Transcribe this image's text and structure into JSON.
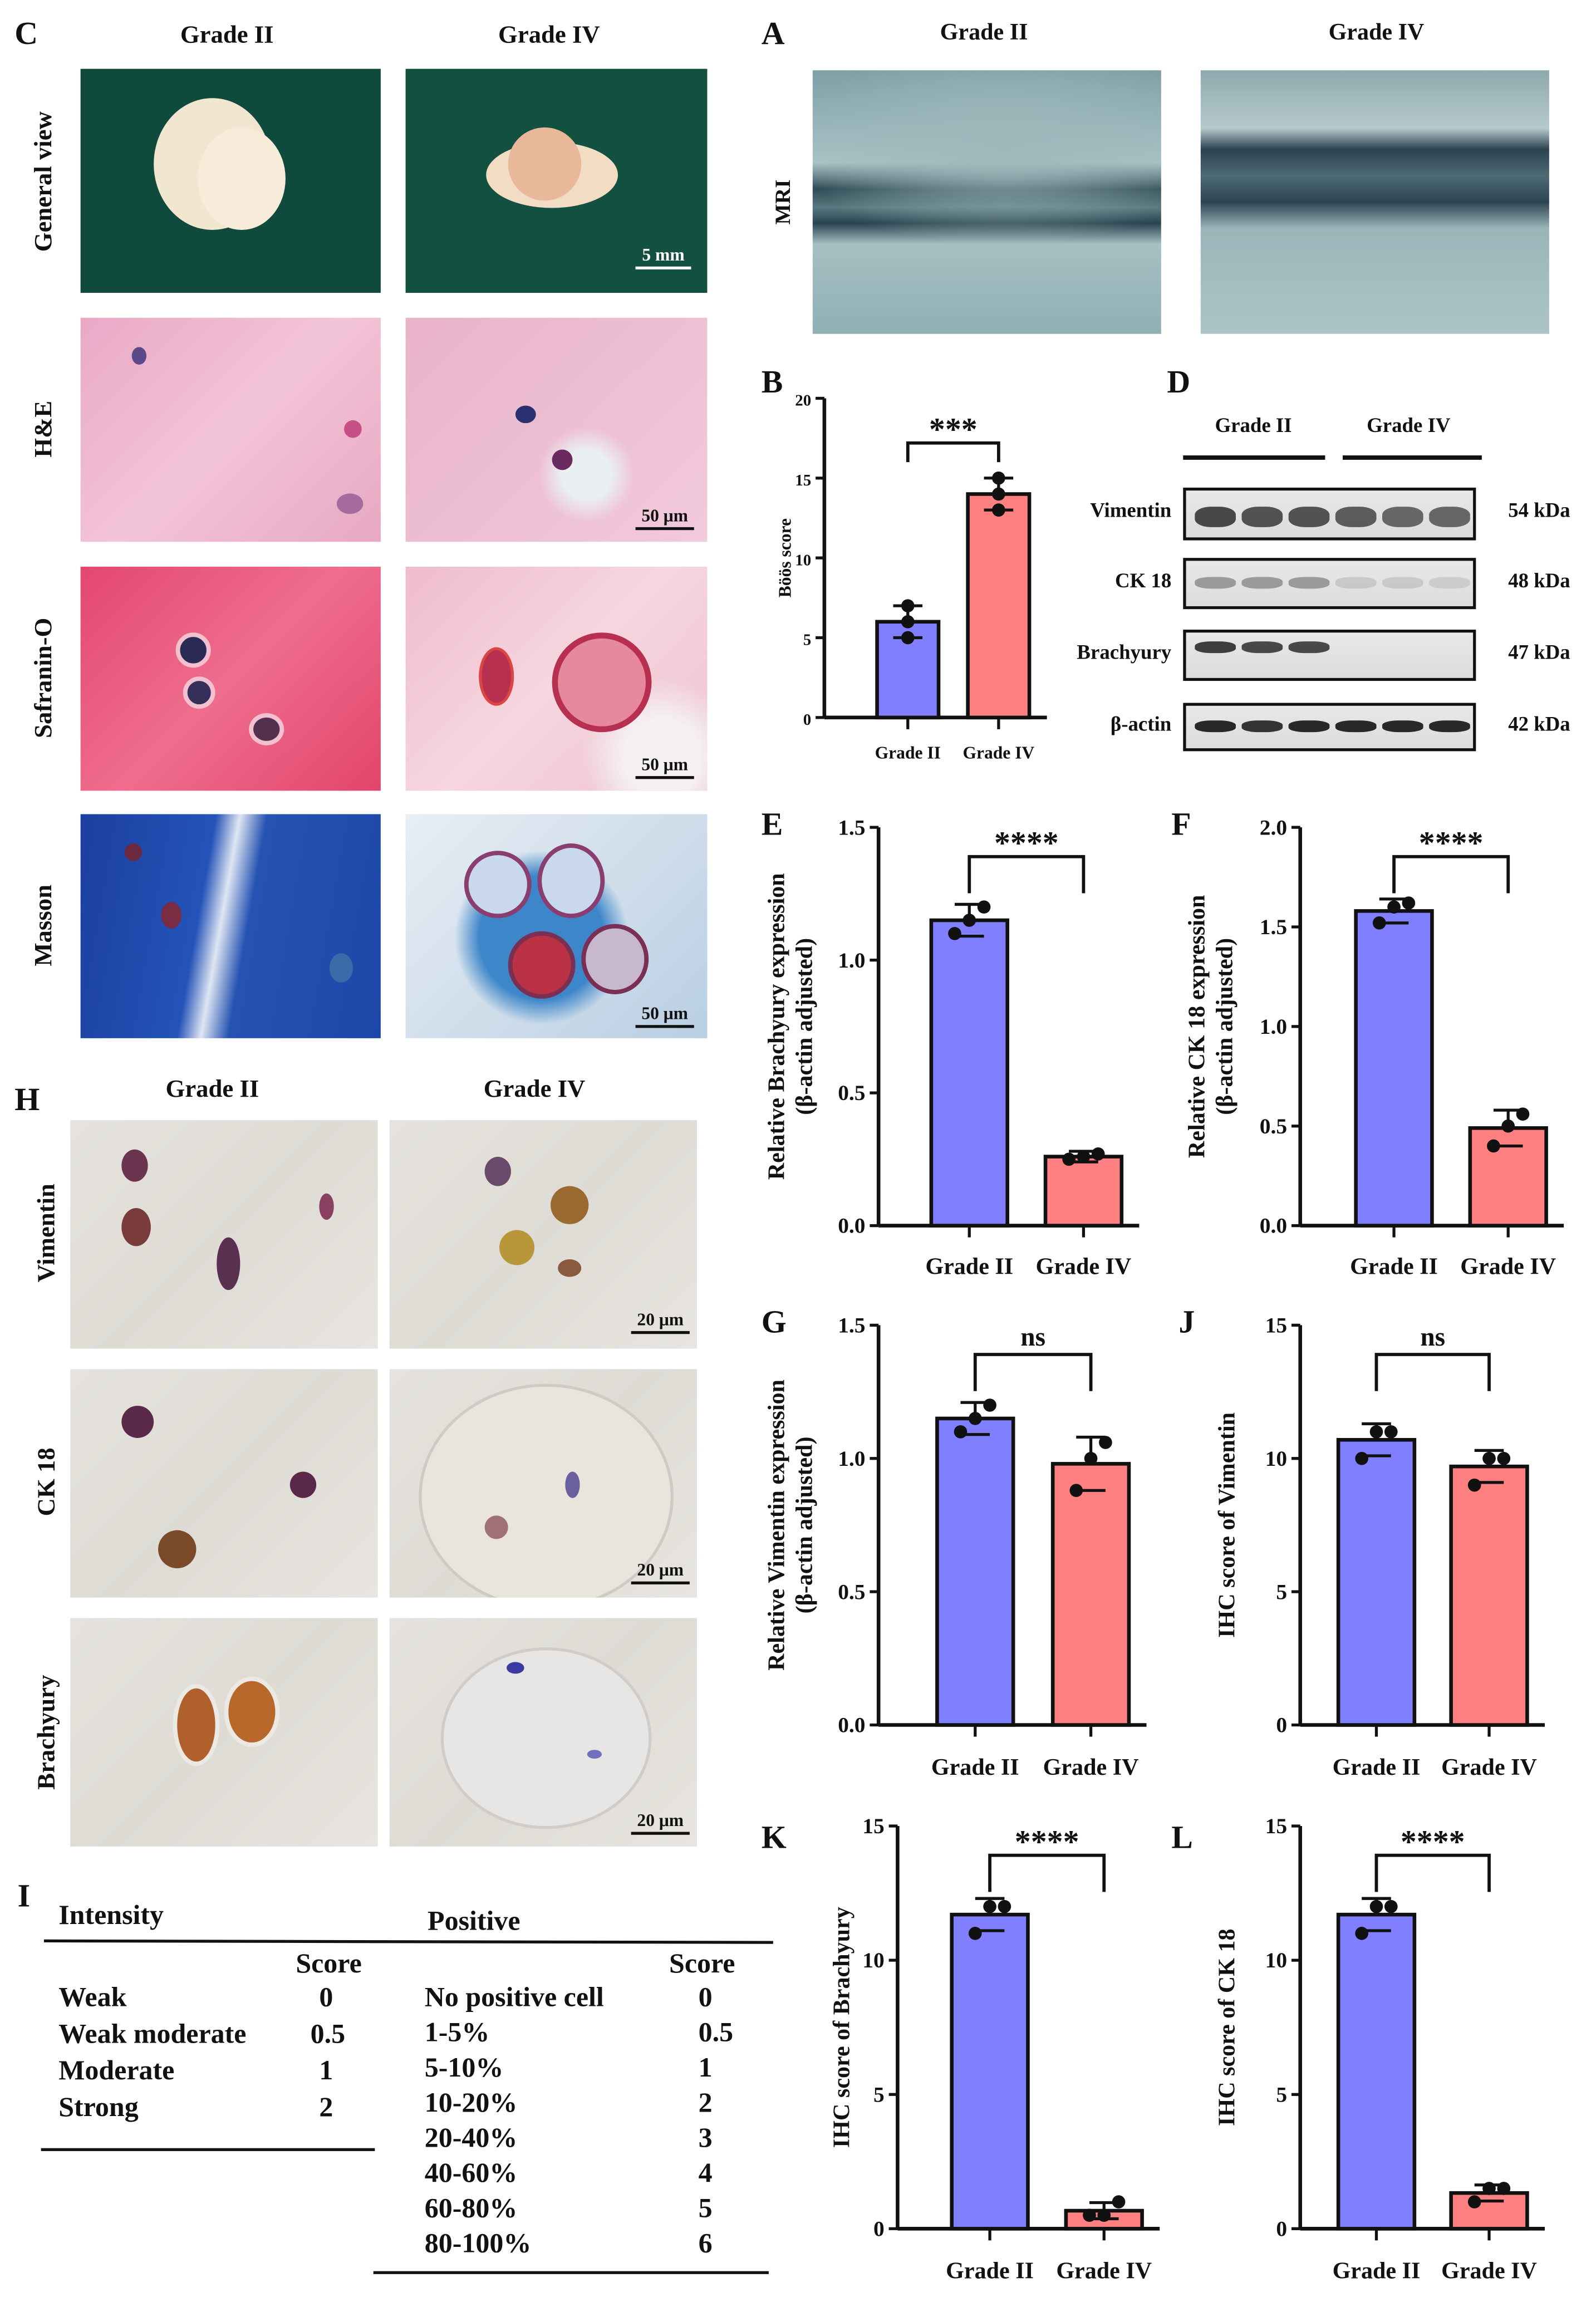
{
  "colors": {
    "grade_ii": "#7f7fff",
    "grade_iv": "#ff8080",
    "axis": "#111111"
  },
  "panel_c": {
    "label": "C",
    "columns": [
      "Grade II",
      "Grade IV"
    ],
    "rows": [
      "General view",
      "H&E",
      "Safranin-O",
      "Masson"
    ],
    "scale_bars": [
      "5 mm",
      "50 μm",
      "50 μm",
      "50 μm"
    ]
  },
  "panel_a": {
    "label": "A",
    "columns": [
      "Grade II",
      "Grade IV"
    ],
    "row": "MRI"
  },
  "panel_d": {
    "label": "D",
    "groups": [
      "Grade II",
      "Grade IV"
    ],
    "proteins": [
      "Vimentin",
      "CK 18",
      "Brachyury",
      "β-actin"
    ],
    "sizes": [
      "54 kDa",
      "48 kDa",
      "47 kDa",
      "42 kDa"
    ]
  },
  "panel_h": {
    "label": "H",
    "columns": [
      "Grade II",
      "Grade IV"
    ],
    "rows": [
      "Vimentin",
      "CK 18",
      "Brachyury"
    ],
    "scale_bars": [
      "20 μm",
      "20 μm",
      "20 μm"
    ]
  },
  "panel_i": {
    "label": "I",
    "intensity_header": "Intensity",
    "positive_header": "Positive",
    "score_header": "Score",
    "intensity": [
      {
        "name": "Weak",
        "score": "0"
      },
      {
        "name": "Weak moderate",
        "score": "0.5"
      },
      {
        "name": "Moderate",
        "score": "1"
      },
      {
        "name": "Strong",
        "score": "2"
      }
    ],
    "positive": [
      {
        "name": "No positive cell",
        "score": "0"
      },
      {
        "name": "1-5%",
        "score": "0.5"
      },
      {
        "name": "5-10%",
        "score": "1"
      },
      {
        "name": "10-20%",
        "score": "2"
      },
      {
        "name": "20-40%",
        "score": "3"
      },
      {
        "name": "40-60%",
        "score": "4"
      },
      {
        "name": "60-80%",
        "score": "5"
      },
      {
        "name": "80-100%",
        "score": "6"
      }
    ]
  },
  "chart_data": [
    {
      "panel": "B",
      "type": "bar",
      "categories": [
        "Grade II",
        "Grade IV"
      ],
      "ylabel": [
        "Böös score"
      ],
      "ylim": [
        0,
        20
      ],
      "yticks": [
        "0",
        "5",
        "10",
        "15",
        "20"
      ],
      "values": [
        6,
        14
      ],
      "points": [
        [
          5,
          6,
          7
        ],
        [
          13,
          14,
          15
        ]
      ],
      "sd": [
        1,
        1
      ],
      "significance": "***"
    },
    {
      "panel": "E",
      "type": "bar",
      "categories": [
        "Grade II",
        "Grade IV"
      ],
      "ylabel": [
        "Relative Brachyury expression",
        "(β-actin adjusted)"
      ],
      "ylim": [
        0,
        1.5
      ],
      "yticks": [
        "0.0",
        "0.5",
        "1.0",
        "1.5"
      ],
      "values": [
        1.15,
        0.26
      ],
      "points": [
        [
          1.1,
          1.15,
          1.2
        ],
        [
          0.25,
          0.26,
          0.27
        ]
      ],
      "sd": [
        0.06,
        0.02
      ],
      "significance": "****"
    },
    {
      "panel": "F",
      "type": "bar",
      "categories": [
        "Grade II",
        "Grade IV"
      ],
      "ylabel": [
        "Relative CK 18 expression",
        "(β-actin adjusted)"
      ],
      "ylim": [
        0,
        2.0
      ],
      "yticks": [
        "0.0",
        "0.5",
        "1.0",
        "1.5",
        "2.0"
      ],
      "values": [
        1.58,
        0.49
      ],
      "points": [
        [
          1.52,
          1.6,
          1.62
        ],
        [
          0.4,
          0.5,
          0.56
        ]
      ],
      "sd": [
        0.06,
        0.09
      ],
      "significance": "****"
    },
    {
      "panel": "G",
      "type": "bar",
      "categories": [
        "Grade II",
        "Grade IV"
      ],
      "ylabel": [
        "Relative Vimentin expression",
        "(β-actin adjusted)"
      ],
      "ylim": [
        0,
        1.5
      ],
      "yticks": [
        "0.0",
        "0.5",
        "1.0",
        "1.5"
      ],
      "values": [
        1.15,
        0.98
      ],
      "points": [
        [
          1.1,
          1.15,
          1.2
        ],
        [
          0.88,
          1.0,
          1.06
        ]
      ],
      "sd": [
        0.06,
        0.1
      ],
      "significance": "ns"
    },
    {
      "panel": "J",
      "type": "bar",
      "categories": [
        "Grade II",
        "Grade IV"
      ],
      "ylabel": [
        "IHC score of Vimentin"
      ],
      "ylim": [
        0,
        15
      ],
      "yticks": [
        "0",
        "5",
        "10",
        "15"
      ],
      "values": [
        10.7,
        9.7
      ],
      "points": [
        [
          10,
          11,
          11
        ],
        [
          9,
          10,
          10
        ]
      ],
      "sd": [
        0.6,
        0.6
      ],
      "significance": "ns"
    },
    {
      "panel": "K",
      "type": "bar",
      "categories": [
        "Grade II",
        "Grade IV"
      ],
      "ylabel": [
        "IHC score of Brachyury"
      ],
      "ylim": [
        0,
        15
      ],
      "yticks": [
        "0",
        "5",
        "10",
        "15"
      ],
      "values": [
        11.7,
        0.67
      ],
      "points": [
        [
          11,
          12,
          12
        ],
        [
          0.5,
          0.5,
          1
        ]
      ],
      "sd": [
        0.6,
        0.3
      ],
      "significance": "****"
    },
    {
      "panel": "L",
      "type": "bar",
      "categories": [
        "Grade II",
        "Grade IV"
      ],
      "ylabel": [
        "IHC score of CK 18"
      ],
      "ylim": [
        0,
        15
      ],
      "yticks": [
        "0",
        "5",
        "10",
        "15"
      ],
      "values": [
        11.7,
        1.33
      ],
      "points": [
        [
          11,
          12,
          12
        ],
        [
          1,
          1.5,
          1.5
        ]
      ],
      "sd": [
        0.6,
        0.3
      ],
      "significance": "****"
    }
  ]
}
